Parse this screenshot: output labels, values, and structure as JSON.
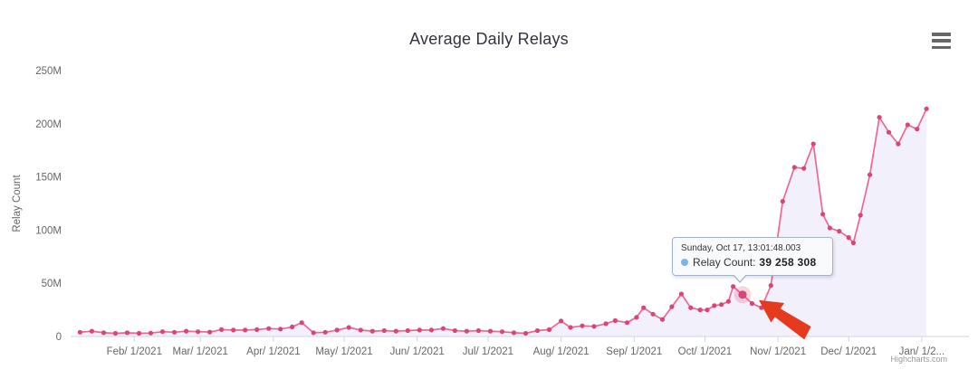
{
  "header": {
    "title": "Average Daily Relays"
  },
  "menu": {
    "icon": "hamburger-icon"
  },
  "credits": {
    "label": "Highcharts.com"
  },
  "tooltip": {
    "header": "Sunday, Oct 17, 13:01:48.003",
    "series_label": "Relay Count:",
    "value": "39 258 308",
    "marker_color": "#7cb5ec",
    "border_color": "#a4b2c8"
  },
  "annotation": {
    "type": "red-arrow",
    "color": "#e63a1e"
  },
  "chart_data": {
    "type": "area",
    "title": "Average Daily Relays",
    "xlabel": "",
    "ylabel": "Relay Count",
    "grid": false,
    "legend": false,
    "ylim": [
      0,
      250000000
    ],
    "y_ticks": [
      {
        "value_m": 0,
        "label": "0"
      },
      {
        "value_m": 50,
        "label": "50M"
      },
      {
        "value_m": 100,
        "label": "100M"
      },
      {
        "value_m": 150,
        "label": "150M"
      },
      {
        "value_m": 200,
        "label": "200M"
      },
      {
        "value_m": 250,
        "label": "250M"
      }
    ],
    "x_range": [
      "2021-01-05",
      "2022-01-21"
    ],
    "x_ticks": [
      {
        "date": "2021-02-01",
        "label": "Feb/ 1/2021"
      },
      {
        "date": "2021-03-01",
        "label": "Mar/ 1/2021"
      },
      {
        "date": "2021-04-01",
        "label": "Apr/ 1/2021"
      },
      {
        "date": "2021-05-01",
        "label": "May/ 1/2021"
      },
      {
        "date": "2021-06-01",
        "label": "Jun/ 1/2021"
      },
      {
        "date": "2021-07-01",
        "label": "Jul/ 1/2021"
      },
      {
        "date": "2021-08-01",
        "label": "Aug/ 1/2021"
      },
      {
        "date": "2021-09-01",
        "label": "Sep/ 1/2021"
      },
      {
        "date": "2021-10-01",
        "label": "Oct/ 1/2021"
      },
      {
        "date": "2021-11-01",
        "label": "Nov/ 1/2021"
      },
      {
        "date": "2021-12-01",
        "label": "Dec/ 1/2021"
      },
      {
        "date": "2022-01-01",
        "label": "Jan/ 1/2..."
      }
    ],
    "series": [
      {
        "name": "Relay Count",
        "line_color": "#ed6793",
        "marker_color": "#d84577",
        "fill_color": "rgba(125,104,216,0.10)",
        "hovered_point": {
          "date": "2021-10-17",
          "value": 39258308,
          "display_value": "39 258 308"
        },
        "points": [
          {
            "d": "2021-01-09",
            "v": 4
          },
          {
            "d": "2021-01-14",
            "v": 5
          },
          {
            "d": "2021-01-19",
            "v": 3.5
          },
          {
            "d": "2021-01-24",
            "v": 3
          },
          {
            "d": "2021-01-29",
            "v": 3.5
          },
          {
            "d": "2021-02-03",
            "v": 3
          },
          {
            "d": "2021-02-08",
            "v": 3.2
          },
          {
            "d": "2021-02-13",
            "v": 4.5
          },
          {
            "d": "2021-02-18",
            "v": 4
          },
          {
            "d": "2021-02-23",
            "v": 5
          },
          {
            "d": "2021-02-28",
            "v": 4.5
          },
          {
            "d": "2021-03-05",
            "v": 4.2
          },
          {
            "d": "2021-03-10",
            "v": 6.5
          },
          {
            "d": "2021-03-15",
            "v": 6
          },
          {
            "d": "2021-03-20",
            "v": 6
          },
          {
            "d": "2021-03-25",
            "v": 6.5
          },
          {
            "d": "2021-03-30",
            "v": 7.5
          },
          {
            "d": "2021-04-04",
            "v": 7
          },
          {
            "d": "2021-04-09",
            "v": 9
          },
          {
            "d": "2021-04-13",
            "v": 13
          },
          {
            "d": "2021-04-18",
            "v": 3.5
          },
          {
            "d": "2021-04-23",
            "v": 4
          },
          {
            "d": "2021-04-28",
            "v": 6
          },
          {
            "d": "2021-05-03",
            "v": 8.5
          },
          {
            "d": "2021-05-08",
            "v": 6
          },
          {
            "d": "2021-05-13",
            "v": 5
          },
          {
            "d": "2021-05-18",
            "v": 5.5
          },
          {
            "d": "2021-05-23",
            "v": 5
          },
          {
            "d": "2021-05-28",
            "v": 5.5
          },
          {
            "d": "2021-06-02",
            "v": 6
          },
          {
            "d": "2021-06-07",
            "v": 6
          },
          {
            "d": "2021-06-12",
            "v": 7.5
          },
          {
            "d": "2021-06-17",
            "v": 5.5
          },
          {
            "d": "2021-06-22",
            "v": 5
          },
          {
            "d": "2021-06-27",
            "v": 5.5
          },
          {
            "d": "2021-07-02",
            "v": 5
          },
          {
            "d": "2021-07-07",
            "v": 4.5
          },
          {
            "d": "2021-07-12",
            "v": 3.5
          },
          {
            "d": "2021-07-17",
            "v": 3
          },
          {
            "d": "2021-07-22",
            "v": 5.5
          },
          {
            "d": "2021-07-27",
            "v": 6.5
          },
          {
            "d": "2021-08-01",
            "v": 14.5
          },
          {
            "d": "2021-08-05",
            "v": 8.5
          },
          {
            "d": "2021-08-10",
            "v": 10
          },
          {
            "d": "2021-08-15",
            "v": 9.5
          },
          {
            "d": "2021-08-20",
            "v": 12
          },
          {
            "d": "2021-08-24",
            "v": 15
          },
          {
            "d": "2021-08-29",
            "v": 13
          },
          {
            "d": "2021-09-02",
            "v": 18
          },
          {
            "d": "2021-09-05",
            "v": 27
          },
          {
            "d": "2021-09-09",
            "v": 21
          },
          {
            "d": "2021-09-13",
            "v": 16
          },
          {
            "d": "2021-09-17",
            "v": 28
          },
          {
            "d": "2021-09-21",
            "v": 40
          },
          {
            "d": "2021-09-25",
            "v": 27
          },
          {
            "d": "2021-09-29",
            "v": 25
          },
          {
            "d": "2021-10-02",
            "v": 25
          },
          {
            "d": "2021-10-05",
            "v": 29
          },
          {
            "d": "2021-10-08",
            "v": 30
          },
          {
            "d": "2021-10-11",
            "v": 33
          },
          {
            "d": "2021-10-13",
            "v": 47
          },
          {
            "d": "2021-10-17",
            "v": 39.258308,
            "hovered": true
          },
          {
            "d": "2021-10-21",
            "v": 31
          },
          {
            "d": "2021-10-25",
            "v": 27
          },
          {
            "d": "2021-10-29",
            "v": 48
          },
          {
            "d": "2021-11-03",
            "v": 127
          },
          {
            "d": "2021-11-08",
            "v": 159
          },
          {
            "d": "2021-11-12",
            "v": 158
          },
          {
            "d": "2021-11-16",
            "v": 181
          },
          {
            "d": "2021-11-20",
            "v": 115
          },
          {
            "d": "2021-11-23",
            "v": 102
          },
          {
            "d": "2021-11-27",
            "v": 99
          },
          {
            "d": "2021-12-01",
            "v": 93
          },
          {
            "d": "2021-12-03",
            "v": 88
          },
          {
            "d": "2021-12-06",
            "v": 114
          },
          {
            "d": "2021-12-10",
            "v": 152
          },
          {
            "d": "2021-12-14",
            "v": 206
          },
          {
            "d": "2021-12-18",
            "v": 192
          },
          {
            "d": "2021-12-22",
            "v": 181
          },
          {
            "d": "2021-12-26",
            "v": 199
          },
          {
            "d": "2021-12-30",
            "v": 195
          },
          {
            "d": "2022-01-03",
            "v": 214
          }
        ]
      }
    ]
  }
}
